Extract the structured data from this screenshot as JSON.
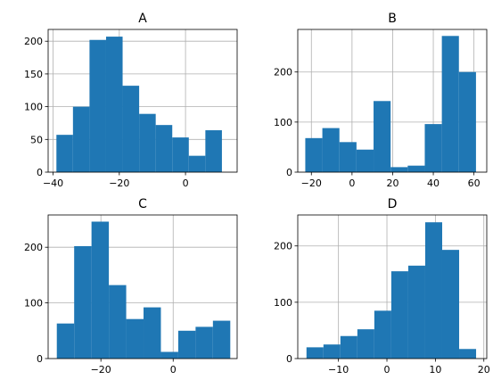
{
  "chart_data": [
    {
      "type": "bar",
      "title": "A",
      "xlim": [
        -41.5,
        15.6
      ],
      "ylim": [
        0,
        218
      ],
      "xticks": [
        -40,
        -20,
        0
      ],
      "yticks": [
        0,
        50,
        100,
        150,
        200
      ],
      "grid": true,
      "bin_edges": [
        -39,
        -34,
        -29,
        -24,
        -19,
        -14,
        -9,
        -4,
        1,
        6,
        11
      ],
      "values": [
        57,
        100,
        202,
        207,
        132,
        89,
        72,
        53,
        25,
        64
      ],
      "color": "#1f77b4"
    },
    {
      "type": "bar",
      "title": "B",
      "xlim": [
        -26.7,
        66.3
      ],
      "ylim": [
        0,
        285
      ],
      "xticks": [
        -20,
        0,
        20,
        40,
        60
      ],
      "yticks": [
        0,
        100,
        200
      ],
      "grid": true,
      "bin_edges": [
        -23,
        -14.6,
        -6.2,
        2.2,
        10.6,
        19,
        27.4,
        35.8,
        44.2,
        52.6,
        61
      ],
      "values": [
        68,
        88,
        60,
        45,
        142,
        10,
        13,
        96,
        272,
        200
      ],
      "color": "#1f77b4"
    },
    {
      "type": "bar",
      "title": "C",
      "xlim": [
        -34.6,
        17.7
      ],
      "ylim": [
        0,
        258
      ],
      "xticks": [
        -20,
        0
      ],
      "yticks": [
        0,
        100,
        200
      ],
      "grid": true,
      "bin_edges": [
        -32.2,
        -27.4,
        -22.6,
        -17.8,
        -13,
        -8.2,
        -3.4,
        1.4,
        6.2,
        11,
        15.8
      ],
      "values": [
        63,
        202,
        246,
        132,
        71,
        92,
        12,
        50,
        57,
        68
      ],
      "color": "#1f77b4"
    },
    {
      "type": "bar",
      "title": "D",
      "xlim": [
        -18.4,
        20.6
      ],
      "ylim": [
        0,
        255
      ],
      "xticks": [
        -10,
        0,
        10,
        20
      ],
      "yticks": [
        0,
        100,
        200
      ],
      "grid": true,
      "bin_edges": [
        -16.6,
        -13.1,
        -9.6,
        -6.1,
        -2.6,
        0.9,
        4.4,
        7.9,
        11.4,
        14.9,
        18.4
      ],
      "values": [
        20,
        25,
        40,
        52,
        85,
        155,
        165,
        242,
        193,
        17
      ],
      "color": "#1f77b4"
    }
  ]
}
